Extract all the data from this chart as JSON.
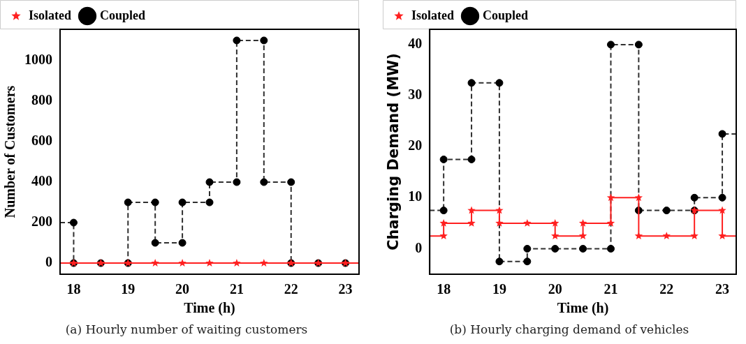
{
  "chart_data": [
    {
      "type": "line",
      "xlabel": "Time (h)",
      "ylabel": "Number of Customers",
      "xlim": [
        17.75,
        23.25
      ],
      "xticks": [
        18,
        19,
        20,
        21,
        22,
        23
      ],
      "ylim": [
        -55,
        1155
      ],
      "yticks": [
        0,
        200,
        400,
        600,
        800,
        1000
      ],
      "legend": "top",
      "grid": false,
      "annotations": [
        "(a) Hourly number of waiting customers"
      ],
      "series": [
        {
          "name": "Isolated",
          "color": "#ff2020",
          "marker": "star",
          "line_style": "solid",
          "x": [
            17.75,
            18,
            18.5,
            19,
            19.5,
            20,
            20.5,
            21,
            21.5,
            22,
            22.5,
            23,
            23.25
          ],
          "values": [
            0,
            0,
            0,
            0,
            0,
            0,
            0,
            0,
            0,
            0,
            0,
            0,
            0
          ]
        },
        {
          "name": "Coupled",
          "color": "#303030",
          "marker": "circle",
          "line_style": "dashed",
          "x": [
            17.75,
            18,
            18,
            18.5,
            19,
            19,
            19.5,
            19.5,
            20,
            20,
            20.5,
            20.5,
            21,
            21,
            21.5,
            21.5,
            22,
            22,
            22.5,
            23,
            23.25
          ],
          "values": [
            200,
            200,
            0,
            0,
            0,
            300,
            300,
            100,
            100,
            300,
            300,
            400,
            400,
            1100,
            1100,
            400,
            400,
            0,
            0,
            0,
            0
          ]
        }
      ]
    },
    {
      "type": "line",
      "xlabel": "Time (h)",
      "ylabel": "Charging Demand (MW)",
      "xlim": [
        17.75,
        23.25
      ],
      "xticks": [
        18,
        19,
        20,
        21,
        22,
        23
      ],
      "ylim": [
        -5,
        43
      ],
      "yticks": [
        0,
        10,
        20,
        30,
        40
      ],
      "legend": "top",
      "grid": false,
      "annotations": [
        "(b) Hourly charging demand of vehicles"
      ],
      "series": [
        {
          "name": "Isolated",
          "color": "#ff2020",
          "marker": "star",
          "line_style": "solid",
          "x": [
            17.75,
            18,
            18,
            18.5,
            18.5,
            19,
            19,
            19.5,
            20,
            20,
            20.5,
            20.5,
            21,
            21,
            21.5,
            21.5,
            22,
            22.5,
            22.5,
            23,
            23,
            23.25
          ],
          "values": [
            2.5,
            2.5,
            5,
            5,
            7.5,
            7.5,
            5,
            5,
            5,
            2.5,
            2.5,
            5,
            5,
            10,
            10,
            2.5,
            2.5,
            2.5,
            7.5,
            7.5,
            2.5,
            2.5
          ]
        },
        {
          "name": "Coupled",
          "color": "#303030",
          "marker": "circle",
          "line_style": "dashed",
          "x": [
            17.75,
            18,
            18,
            18.5,
            18.5,
            19,
            19,
            19.5,
            19.5,
            20,
            20.5,
            21,
            21,
            21.5,
            21.5,
            22,
            22.5,
            22.5,
            23,
            23,
            23.25
          ],
          "values": [
            7.5,
            7.5,
            17.5,
            17.5,
            32.5,
            32.5,
            -2.5,
            -2.5,
            0,
            0,
            0,
            0,
            40,
            40,
            7.5,
            7.5,
            7.5,
            10,
            10,
            22.5,
            22.5
          ]
        }
      ]
    }
  ]
}
